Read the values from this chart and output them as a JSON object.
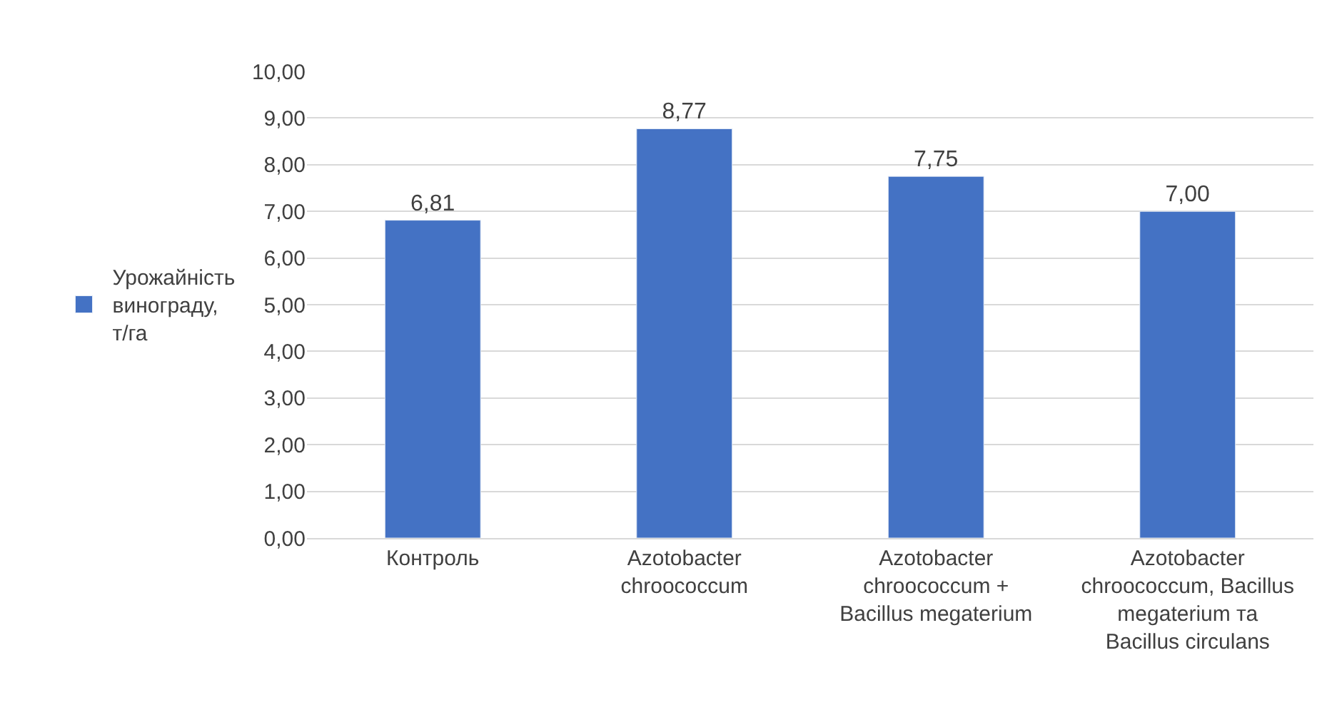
{
  "chart_data": {
    "type": "bar",
    "categories": [
      "Контроль",
      "Azotobacter chroococcum",
      "Azotobacter chroococcum + Bacillus megaterium",
      "Azotobacter chroococcum, Bacillus megaterium та Bacillus circulans"
    ],
    "series": [
      {
        "name": "Урожайність винограду, т/га",
        "color": "#4472c4",
        "values": [
          6.81,
          8.77,
          7.75,
          7.0
        ],
        "value_labels": [
          "6,81",
          "8,77",
          "7,75",
          "7,00"
        ]
      }
    ],
    "ylim": [
      0,
      10
    ],
    "yticks": [
      {
        "value": 0,
        "label": "0,00"
      },
      {
        "value": 1,
        "label": "1,00"
      },
      {
        "value": 2,
        "label": "2,00"
      },
      {
        "value": 3,
        "label": "3,00"
      },
      {
        "value": 4,
        "label": "4,00"
      },
      {
        "value": 5,
        "label": "5,00"
      },
      {
        "value": 6,
        "label": "6,00"
      },
      {
        "value": 7,
        "label": "7,00"
      },
      {
        "value": 8,
        "label": "8,00"
      },
      {
        "value": 9,
        "label": "9,00"
      },
      {
        "value": 10,
        "label": "10,00"
      }
    ],
    "grid": "y",
    "legend": "left"
  }
}
